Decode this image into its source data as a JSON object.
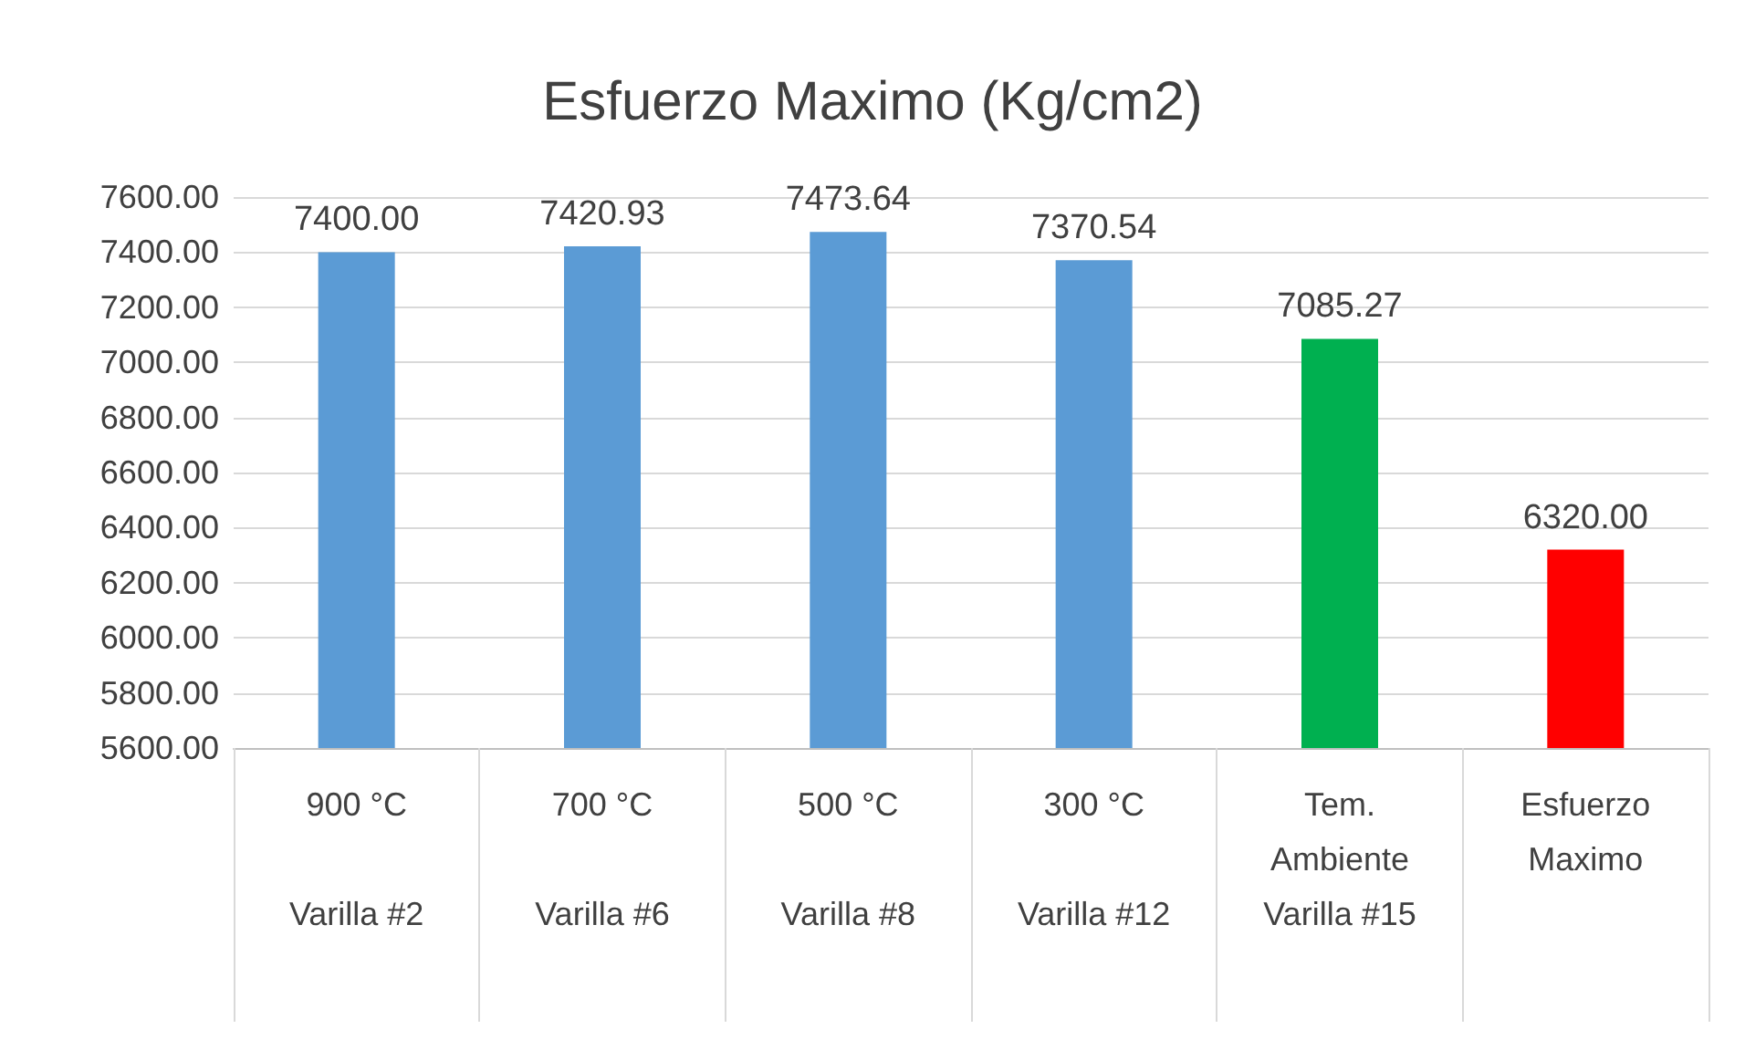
{
  "chart_data": {
    "type": "bar",
    "title": "Esfuerzo Maximo (Kg/cm2)",
    "categories": [
      "900 °C\n\nVarilla #2",
      "700 °C\n\nVarilla #6",
      "500 °C\n\nVarilla #8",
      "300 °C\n\nVarilla #12",
      "Tem.\nAmbiente\nVarilla #15",
      "Esfuerzo\nMaximo"
    ],
    "values": [
      7400,
      7420.93,
      7473.64,
      7370.54,
      7085.27,
      6320
    ],
    "colors": [
      "#5b9bd5",
      "#5b9bd5",
      "#5b9bd5",
      "#5b9bd5",
      "#00b050",
      "#ff0000"
    ],
    "value_labels": [
      "7400.00",
      "7420.93",
      "7473.64",
      "7370.54",
      "7085.27",
      "6320.00"
    ],
    "ylim": [
      5600,
      7600
    ],
    "yticks": [
      {
        "value": 5600,
        "label": "5600.00"
      },
      {
        "value": 5800,
        "label": "5800.00"
      },
      {
        "value": 6000,
        "label": "6000.00"
      },
      {
        "value": 6200,
        "label": "6200.00"
      },
      {
        "value": 6400,
        "label": "6400.00"
      },
      {
        "value": 6600,
        "label": "6600.00"
      },
      {
        "value": 6800,
        "label": "6800.00"
      },
      {
        "value": 7000,
        "label": "7000.00"
      },
      {
        "value": 7200,
        "label": "7200.00"
      },
      {
        "value": 7400,
        "label": "7400.00"
      },
      {
        "value": 7600,
        "label": "7600.00"
      }
    ],
    "grid": "y"
  }
}
